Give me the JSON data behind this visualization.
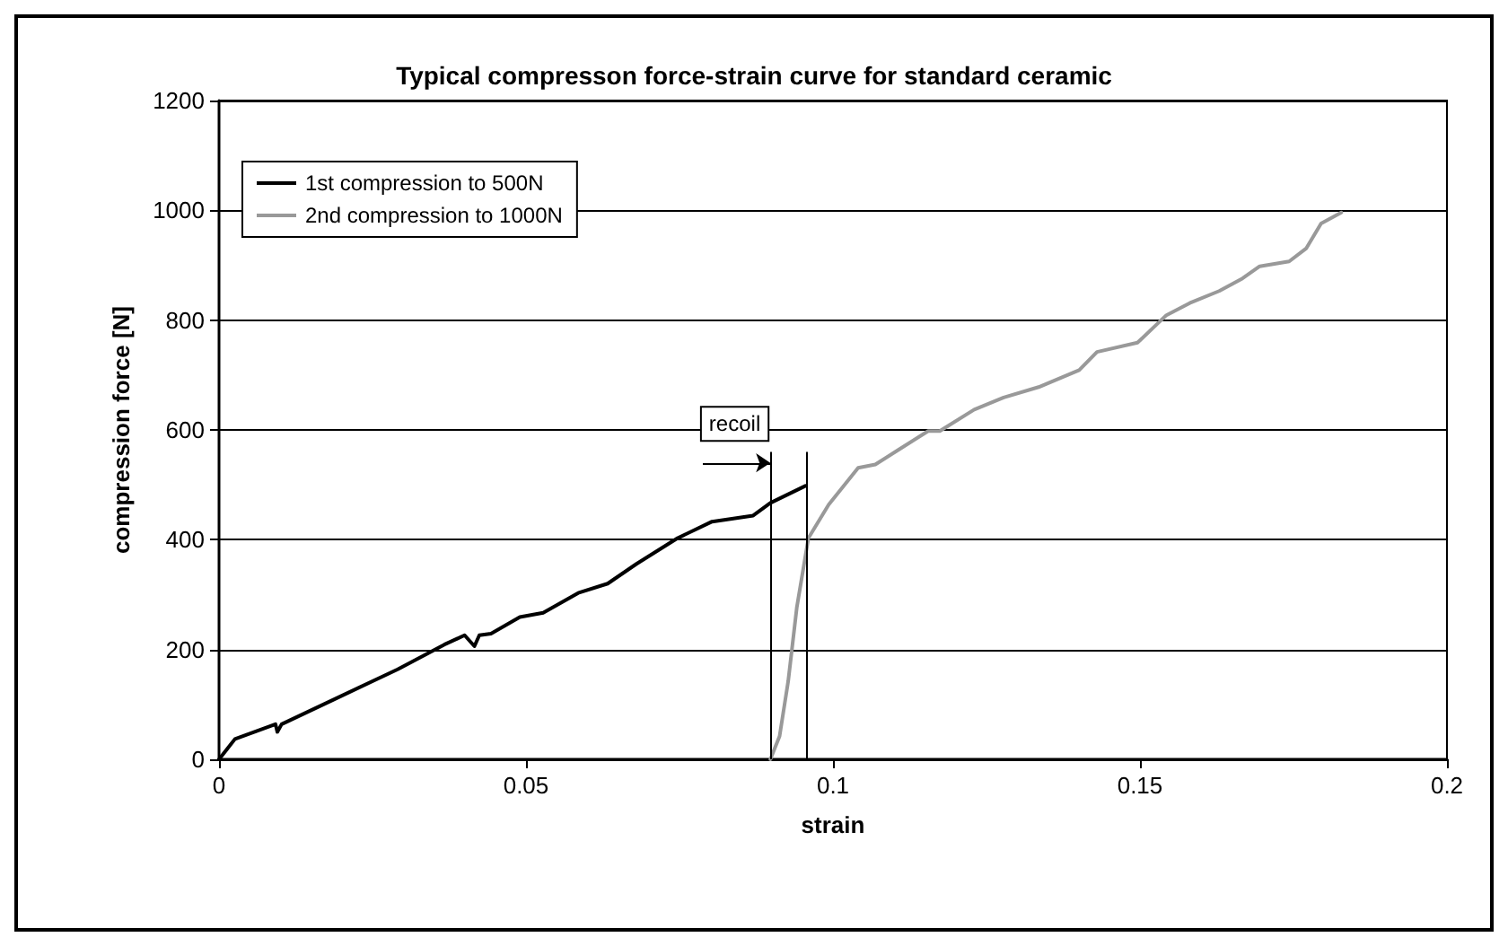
{
  "chart_data": {
    "type": "line",
    "title": "Typical compresson force-strain curve for standard ceramic",
    "xlabel": "strain",
    "ylabel": "compression force [N]",
    "xlim": [
      0,
      0.2
    ],
    "xticks": [
      0,
      0.05,
      0.1,
      0.15,
      0.2
    ],
    "ylim": [
      0,
      1200
    ],
    "yticks": [
      0,
      200,
      400,
      600,
      800,
      1000,
      1200
    ],
    "grid": "y",
    "legend": "top left",
    "marker": "none",
    "line_style": "solid",
    "series": [
      {
        "name": "1st compression to 500N",
        "color": "#000000",
        "x": [
          0,
          0.0026,
          0.0092,
          0.0095,
          0.0102,
          0.0187,
          0.0291,
          0.0367,
          0.04,
          0.0416,
          0.0424,
          0.0443,
          0.049,
          0.0528,
          0.0585,
          0.0633,
          0.068,
          0.0747,
          0.0803,
          0.087,
          0.0898,
          0.0955
        ],
        "values": [
          0,
          37,
          64,
          50,
          64,
          109,
          164,
          209,
          226,
          206,
          226,
          229,
          259,
          267,
          303,
          320,
          356,
          403,
          433,
          444,
          467,
          498
        ]
      },
      {
        "name": "2nd compression to 1000N",
        "color": "#999999",
        "x": [
          0.0898,
          0.0913,
          0.0927,
          0.0941,
          0.096,
          0.0993,
          0.1041,
          0.1069,
          0.1107,
          0.1155,
          0.1174,
          0.123,
          0.1278,
          0.1335,
          0.1354,
          0.1401,
          0.143,
          0.1496,
          0.1543,
          0.1581,
          0.1629,
          0.1667,
          0.1695,
          0.1743,
          0.1771,
          0.1795,
          0.1828
        ],
        "values": [
          0,
          42,
          142,
          276,
          403,
          464,
          531,
          537,
          564,
          598,
          598,
          637,
          659,
          678,
          687,
          709,
          742,
          759,
          809,
          831,
          853,
          876,
          898,
          907,
          931,
          976,
          996
        ]
      }
    ],
    "ref_lines": [
      {
        "axis": "x",
        "value": 0.0898,
        "color": "#000000"
      },
      {
        "axis": "x",
        "value": 0.0958,
        "color": "#000000"
      }
    ],
    "annotations": [
      {
        "text": "recoil",
        "x": 0.0898,
        "y": 570
      }
    ]
  }
}
